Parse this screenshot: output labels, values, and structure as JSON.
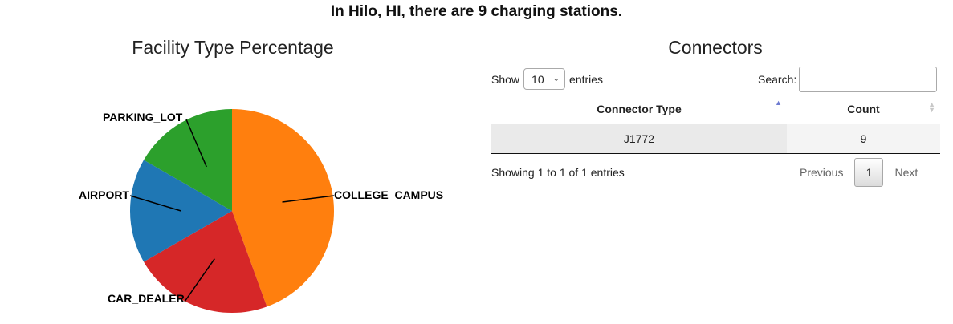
{
  "header": {
    "title": "In Hilo, HI, there are 9 charging stations."
  },
  "chart_data": {
    "type": "pie",
    "title": "Facility Type Percentage",
    "labels": [
      "COLLEGE_CAMPUS",
      "CAR_DEALER",
      "AIRPORT",
      "PARKING_LOT"
    ],
    "values": [
      4,
      2,
      1.5,
      1.5
    ],
    "colors": [
      "#ff7f0e",
      "#d62728",
      "#1f77b4",
      "#2ca02c"
    ],
    "start_angle_deg": 0,
    "direction": "clockwise"
  },
  "connectors": {
    "title": "Connectors",
    "show_label": "Show",
    "entries_value": "10",
    "entries_label": "entries",
    "search_label": "Search:",
    "search_value": "",
    "columns": [
      "Connector Type",
      "Count"
    ],
    "rows": [
      {
        "type": "J1772",
        "count": "9"
      }
    ],
    "info": "Showing 1 to 1 of 1 entries",
    "pagination": {
      "previous": "Previous",
      "current": "1",
      "next": "Next"
    }
  }
}
